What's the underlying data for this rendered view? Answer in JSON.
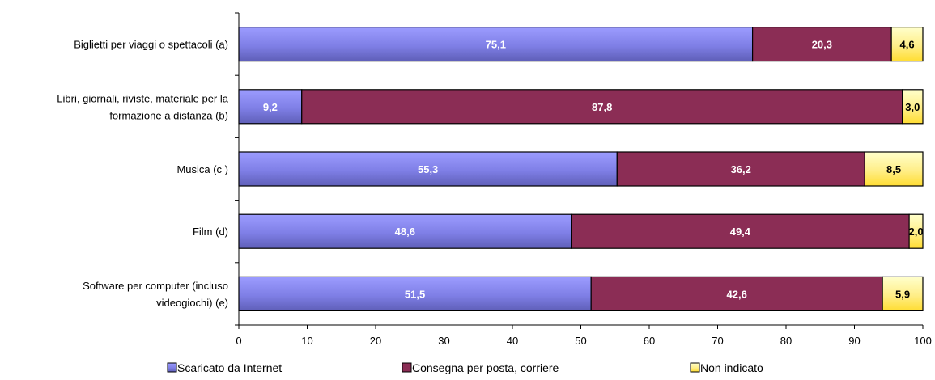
{
  "chart_data": {
    "type": "bar",
    "orientation": "horizontal",
    "stacked": true,
    "categories": [
      [
        "Biglietti per viaggi o spettacoli (a)"
      ],
      [
        "Libri, giornali, riviste, materiale per la",
        "formazione a distanza (b)"
      ],
      [
        "Musica (c )"
      ],
      [
        "Film (d)"
      ],
      [
        "Software per computer (incluso",
        "videogiochi) (e)"
      ]
    ],
    "series": [
      {
        "name": "Scaricato da Internet",
        "values": [
          75.1,
          9.2,
          55.3,
          48.6,
          51.5
        ],
        "labels": [
          "75,1",
          "9,2",
          "55,3",
          "48,6",
          "51,5"
        ],
        "color": "#7f7fe6",
        "color_light": "#9c9cff",
        "color_dark": "#5f5fb8",
        "label_color": "#ffffff"
      },
      {
        "name": "Consegna per posta, corriere",
        "values": [
          20.3,
          87.8,
          36.2,
          49.4,
          42.6
        ],
        "labels": [
          "20,3",
          "87,8",
          "36,2",
          "49,4",
          "42,6"
        ],
        "color": "#8b2d55",
        "color_light": "#8b2d55",
        "color_dark": "#8b2d55",
        "label_color": "#ffffff"
      },
      {
        "name": "Non indicato",
        "values": [
          4.6,
          3.0,
          8.5,
          2.0,
          5.9
        ],
        "labels": [
          "4,6",
          "3,0",
          "8,5",
          "2,0",
          "5,9"
        ],
        "color": "#ffee88",
        "color_light": "#ffffcc",
        "color_dark": "#ffdd33",
        "label_color": "#000000"
      }
    ],
    "xlim": [
      0,
      100
    ],
    "xticks": [
      "0",
      "10",
      "20",
      "30",
      "40",
      "50",
      "60",
      "70",
      "80",
      "90",
      "100"
    ],
    "grid": false,
    "legend_position": "bottom"
  }
}
